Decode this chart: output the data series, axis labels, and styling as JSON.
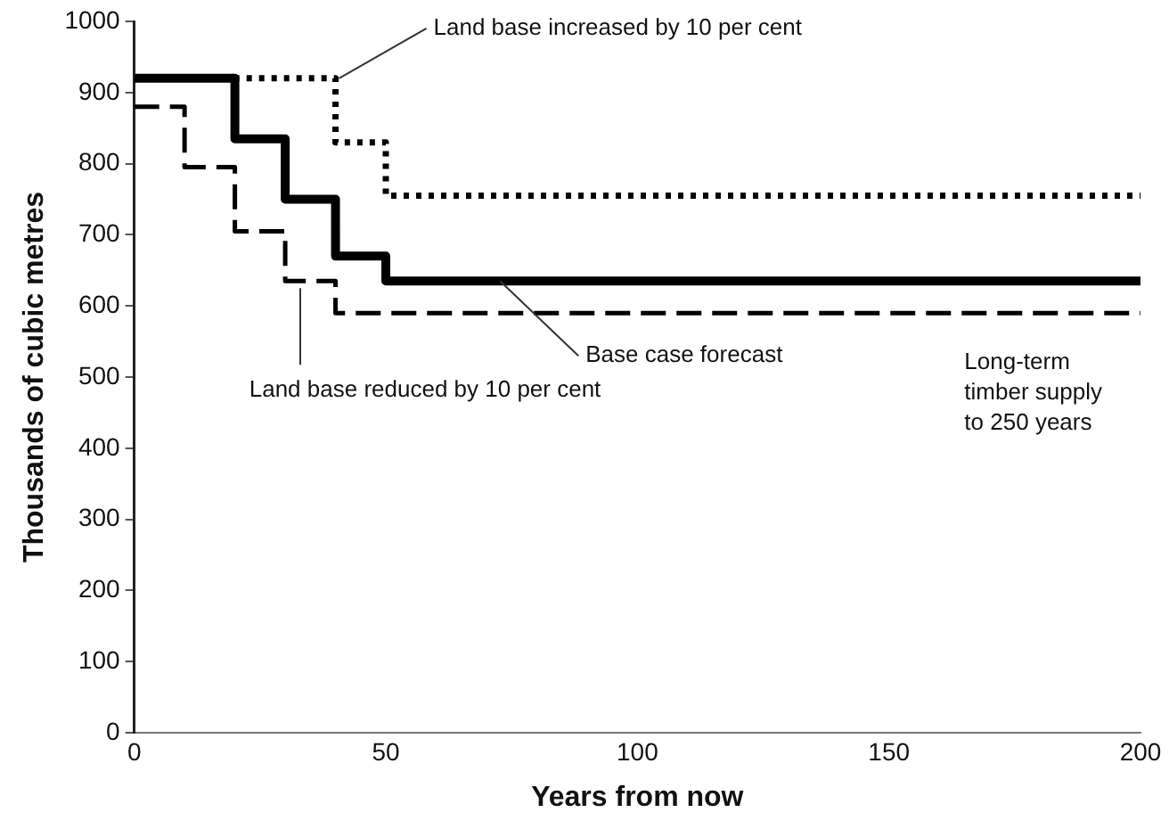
{
  "chart_data": {
    "type": "step",
    "xlabel": "Years from now",
    "ylabel": "Thousands of cubic metres",
    "xlim": [
      0,
      200
    ],
    "xticks": [
      0,
      50,
      100,
      150,
      200
    ],
    "ylim": [
      0,
      1000
    ],
    "yticks": [
      0,
      100,
      200,
      300,
      400,
      500,
      600,
      700,
      800,
      900,
      1000
    ],
    "grid": false,
    "legend": false,
    "marker": "none",
    "series": [
      {
        "color": "#000000",
        "line_style": "dotted",
        "x": [
          0,
          40,
          50,
          200
        ],
        "values": [
          920,
          830,
          755,
          755
        ]
      },
      {
        "color": "#000000",
        "line_style": "solid",
        "x": [
          0,
          20,
          30,
          40,
          50,
          200
        ],
        "values": [
          920,
          835,
          750,
          670,
          635,
          635
        ]
      },
      {
        "color": "#000000",
        "line_style": "dashed",
        "x": [
          0,
          10,
          20,
          30,
          40,
          200
        ],
        "values": [
          880,
          795,
          705,
          635,
          590,
          590
        ]
      }
    ],
    "annotations": [
      {
        "text": "Land base increased by 10 per cent",
        "x": 40,
        "y": 920
      },
      {
        "text": "Base case forecast",
        "x": 72,
        "y": 635
      },
      {
        "text": "Land base reduced by 10 per cent",
        "x": 33,
        "y": 635
      },
      "Long-term timber supply to 250 years"
    ]
  }
}
